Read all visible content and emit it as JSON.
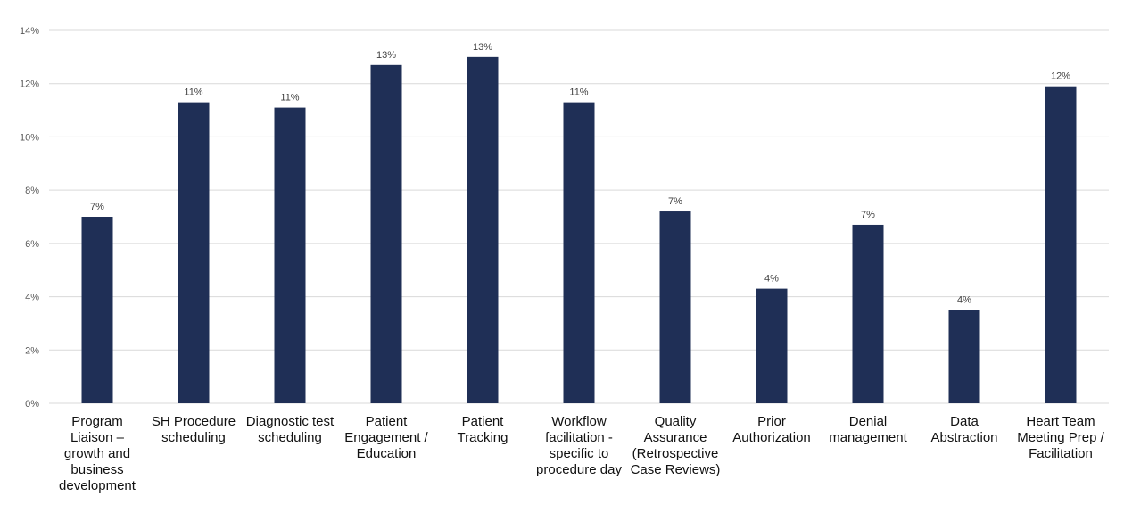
{
  "chart_data": {
    "type": "bar",
    "title": "",
    "xlabel": "",
    "ylabel": "",
    "ylim": [
      0,
      14
    ],
    "y_ticks": [
      "0%",
      "2%",
      "4%",
      "6%",
      "8%",
      "10%",
      "12%",
      "14%"
    ],
    "grid": true,
    "bar_color": "#1f2f56",
    "categories": [
      [
        "Program",
        "Liaison –",
        "growth and",
        "business",
        "development"
      ],
      [
        "SH Procedure",
        "scheduling"
      ],
      [
        "Diagnostic test",
        "scheduling"
      ],
      [
        "Patient",
        "Engagement /",
        "Education"
      ],
      [
        "Patient",
        "Tracking"
      ],
      [
        "Workflow",
        "facilitation -",
        "specific to",
        "procedure day"
      ],
      [
        "Quality",
        "Assurance",
        "(Retrospective",
        "Case Reviews)"
      ],
      [
        "Prior",
        "Authorization"
      ],
      [
        "Denial",
        "management"
      ],
      [
        "Data",
        "Abstraction"
      ],
      [
        "Heart Team",
        "Meeting Prep /",
        "Facilitation"
      ]
    ],
    "values": [
      7.0,
      11.3,
      11.1,
      12.7,
      13.0,
      11.3,
      7.2,
      4.3,
      6.7,
      3.5,
      11.9
    ],
    "data_labels": [
      "7%",
      "11%",
      "11%",
      "13%",
      "13%",
      "11%",
      "7%",
      "4%",
      "7%",
      "4%",
      "12%"
    ]
  }
}
